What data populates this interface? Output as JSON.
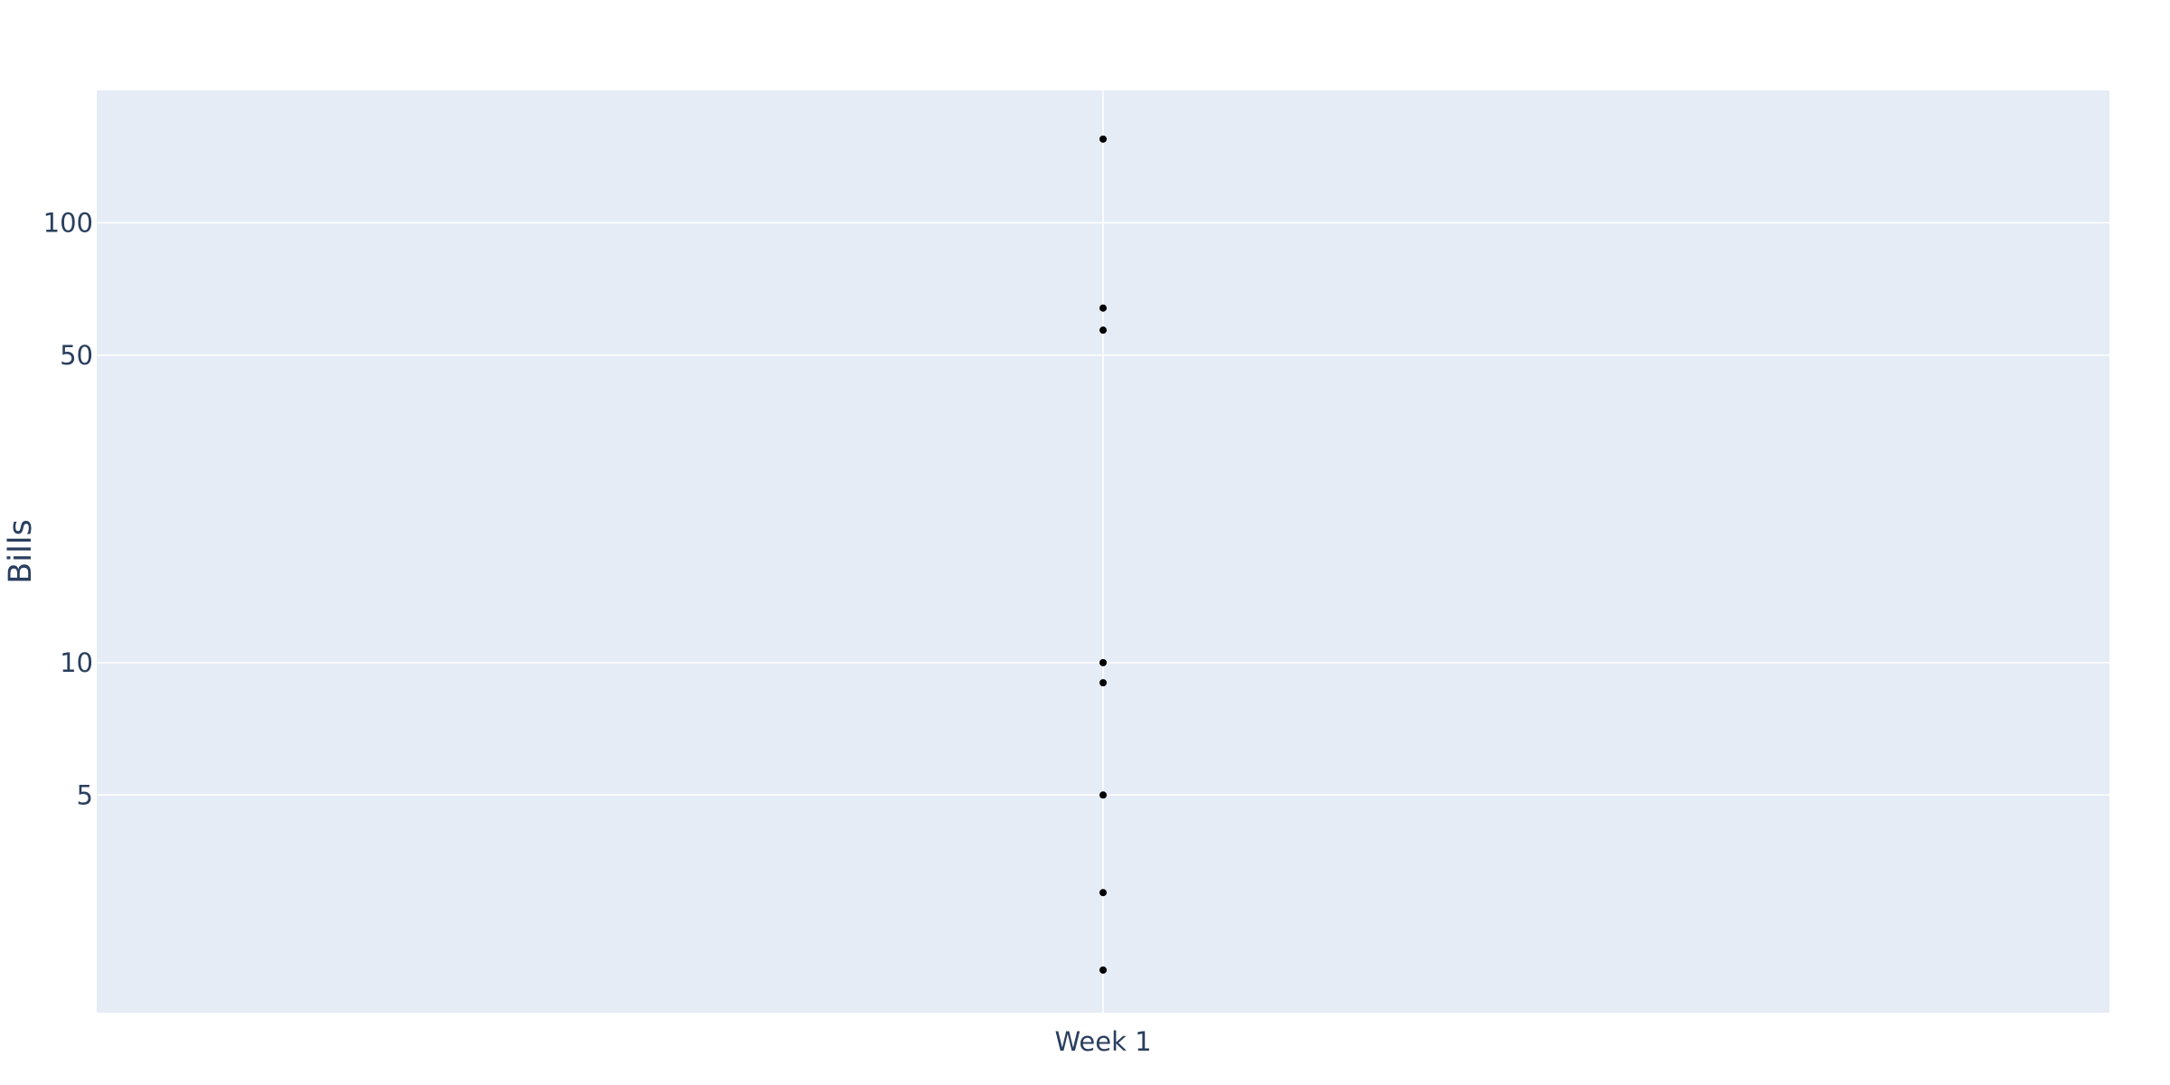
{
  "chart_data": {
    "type": "scatter",
    "title": "",
    "xlabel": "",
    "ylabel": "Bills",
    "y_scale": "log",
    "ylim": [
      1.6,
      200
    ],
    "grid": true,
    "legend": "none",
    "categories": [
      "Week 1"
    ],
    "points": [
      {
        "x": "Week 1",
        "y": 155
      },
      {
        "x": "Week 1",
        "y": 64
      },
      {
        "x": "Week 1",
        "y": 57
      },
      {
        "x": "Week 1",
        "y": 10
      },
      {
        "x": "Week 1",
        "y": 9
      },
      {
        "x": "Week 1",
        "y": 5
      },
      {
        "x": "Week 1",
        "y": 3
      },
      {
        "x": "Week 1",
        "y": 2
      }
    ],
    "y_ticks": [
      {
        "value": 5,
        "label": "5"
      },
      {
        "value": 10,
        "label": "10"
      },
      {
        "value": 50,
        "label": "50"
      },
      {
        "value": 100,
        "label": "100"
      }
    ],
    "colors": {
      "plot_background": "#e5ecf6",
      "grid": "#ffffff",
      "marker": "#000000",
      "text": "#2a3f5f"
    }
  }
}
